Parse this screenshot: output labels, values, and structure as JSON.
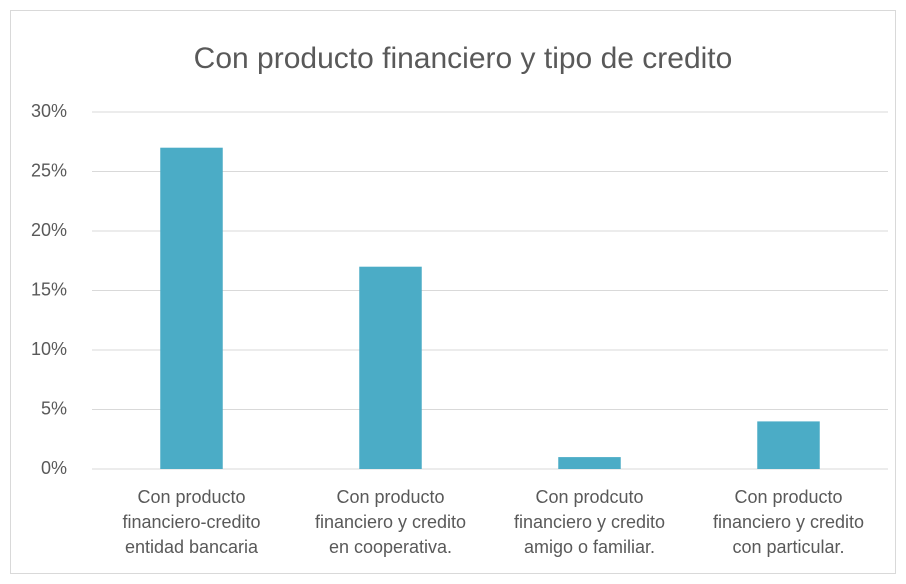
{
  "chart_data": {
    "type": "bar",
    "title": "Con producto financiero y tipo de credito",
    "categories": [
      "Con producto financiero-credito entidad bancaria",
      "Con producto financiero y credito en cooperativa.",
      "Con prodcuto financiero y credito amigo o familiar.",
      "Con producto financiero y credito con particular."
    ],
    "values": [
      27,
      17,
      1,
      4
    ],
    "color": "#4bacc6",
    "ylim": [
      0,
      30
    ],
    "yticks": [
      {
        "value": 0,
        "label": "0%"
      },
      {
        "value": 5,
        "label": "5%"
      },
      {
        "value": 10,
        "label": "10%"
      },
      {
        "value": 15,
        "label": "15%"
      },
      {
        "value": 20,
        "label": "20%"
      },
      {
        "value": 25,
        "label": "25%"
      },
      {
        "value": 30,
        "label": "30%"
      }
    ],
    "grid": true
  }
}
